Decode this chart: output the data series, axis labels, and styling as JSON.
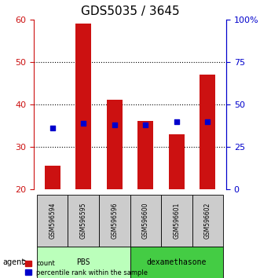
{
  "title": "GDS5035 / 3645",
  "samples": [
    "GSM596594",
    "GSM596595",
    "GSM596596",
    "GSM596600",
    "GSM596601",
    "GSM596602"
  ],
  "count_values": [
    25.5,
    59.0,
    41.0,
    36.0,
    33.0,
    47.0
  ],
  "percentile_values": [
    36.0,
    39.0,
    38.0,
    38.0,
    39.5,
    39.5
  ],
  "ylim": [
    20,
    60
  ],
  "y_left_ticks": [
    20,
    30,
    40,
    50,
    60
  ],
  "y_right_ticks": [
    0,
    25,
    50,
    75,
    100
  ],
  "y_right_labels": [
    "0",
    "25",
    "50",
    "75",
    "100%"
  ],
  "bar_color": "#cc1111",
  "dot_color": "#0000cc",
  "groups": [
    {
      "label": "PBS",
      "start": 0,
      "end": 2,
      "color": "#bbffbb"
    },
    {
      "label": "dexamethasone",
      "start": 3,
      "end": 5,
      "color": "#44cc44"
    }
  ],
  "agent_label": "agent",
  "legend_count_label": "count",
  "legend_percentile_label": "percentile rank within the sample",
  "bar_width": 0.5,
  "bar_bottom": 20,
  "title_fontsize": 11,
  "tick_fontsize": 8,
  "background_color": "#ffffff",
  "left_axis_color": "#cc1111",
  "right_axis_color": "#0000cc",
  "sample_box_color": "#cccccc",
  "grid_ticks": [
    30,
    40,
    50
  ]
}
